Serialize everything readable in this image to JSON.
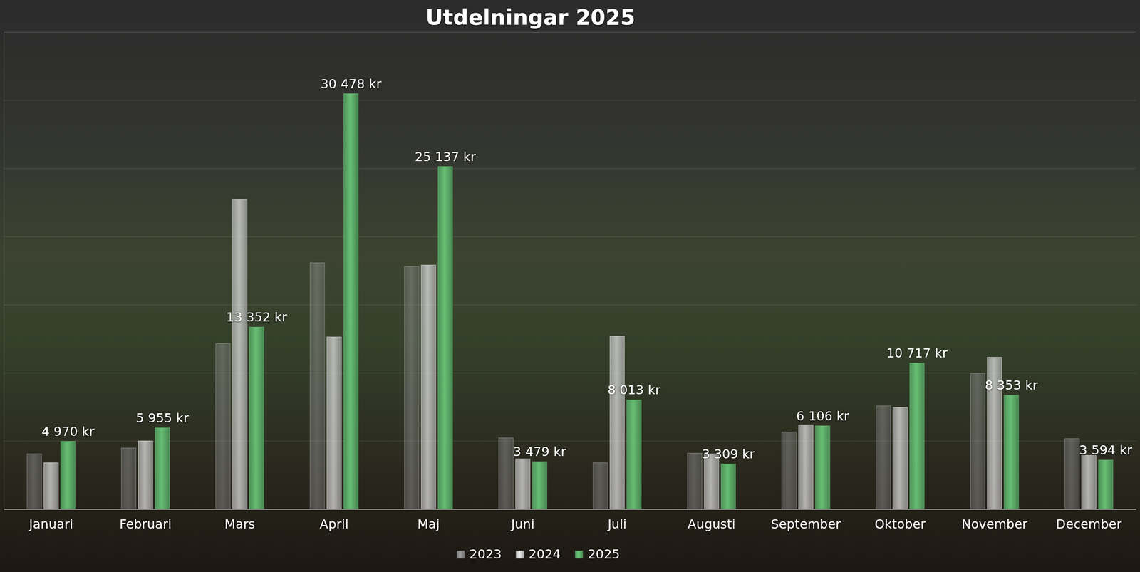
{
  "chart_data": {
    "type": "bar",
    "title": "Utdelningar 2025",
    "categories": [
      "Januari",
      "Februari",
      "Mars",
      "April",
      "Maj",
      "Juni",
      "Juli",
      "Augusti",
      "September",
      "Oktober",
      "November",
      "December"
    ],
    "series": [
      {
        "name": "2023",
        "color": "#8a8a8a",
        "values": [
          4050,
          4480,
          12150,
          18070,
          17800,
          5220,
          3400,
          4100,
          5650,
          7570,
          9970,
          5170
        ]
      },
      {
        "name": "2024",
        "color": "#cfcfcf",
        "values": [
          3400,
          5000,
          22700,
          12630,
          17900,
          3680,
          12690,
          4050,
          6180,
          7460,
          11140,
          3940
        ]
      },
      {
        "name": "2025",
        "color": "#5cac68",
        "data_labels": true,
        "values": [
          4970,
          5955,
          13352,
          30478,
          25137,
          3479,
          8013,
          3309,
          6106,
          10717,
          8353,
          3594
        ],
        "value_labels": [
          "4 970 kr",
          "5 955 kr",
          "13 352 kr",
          "30 478 kr",
          "25 137 kr",
          "3 479 kr",
          "8 013 kr",
          "3 309 kr",
          "6 106 kr",
          "10 717 kr",
          "8 353 kr",
          "3 594 kr"
        ]
      }
    ],
    "ylim": [
      0,
      35000
    ],
    "yticks": [
      0,
      5000,
      10000,
      15000,
      20000,
      25000,
      30000,
      35000
    ],
    "grid": true,
    "legend": "bottom",
    "tick_labels": "x"
  }
}
